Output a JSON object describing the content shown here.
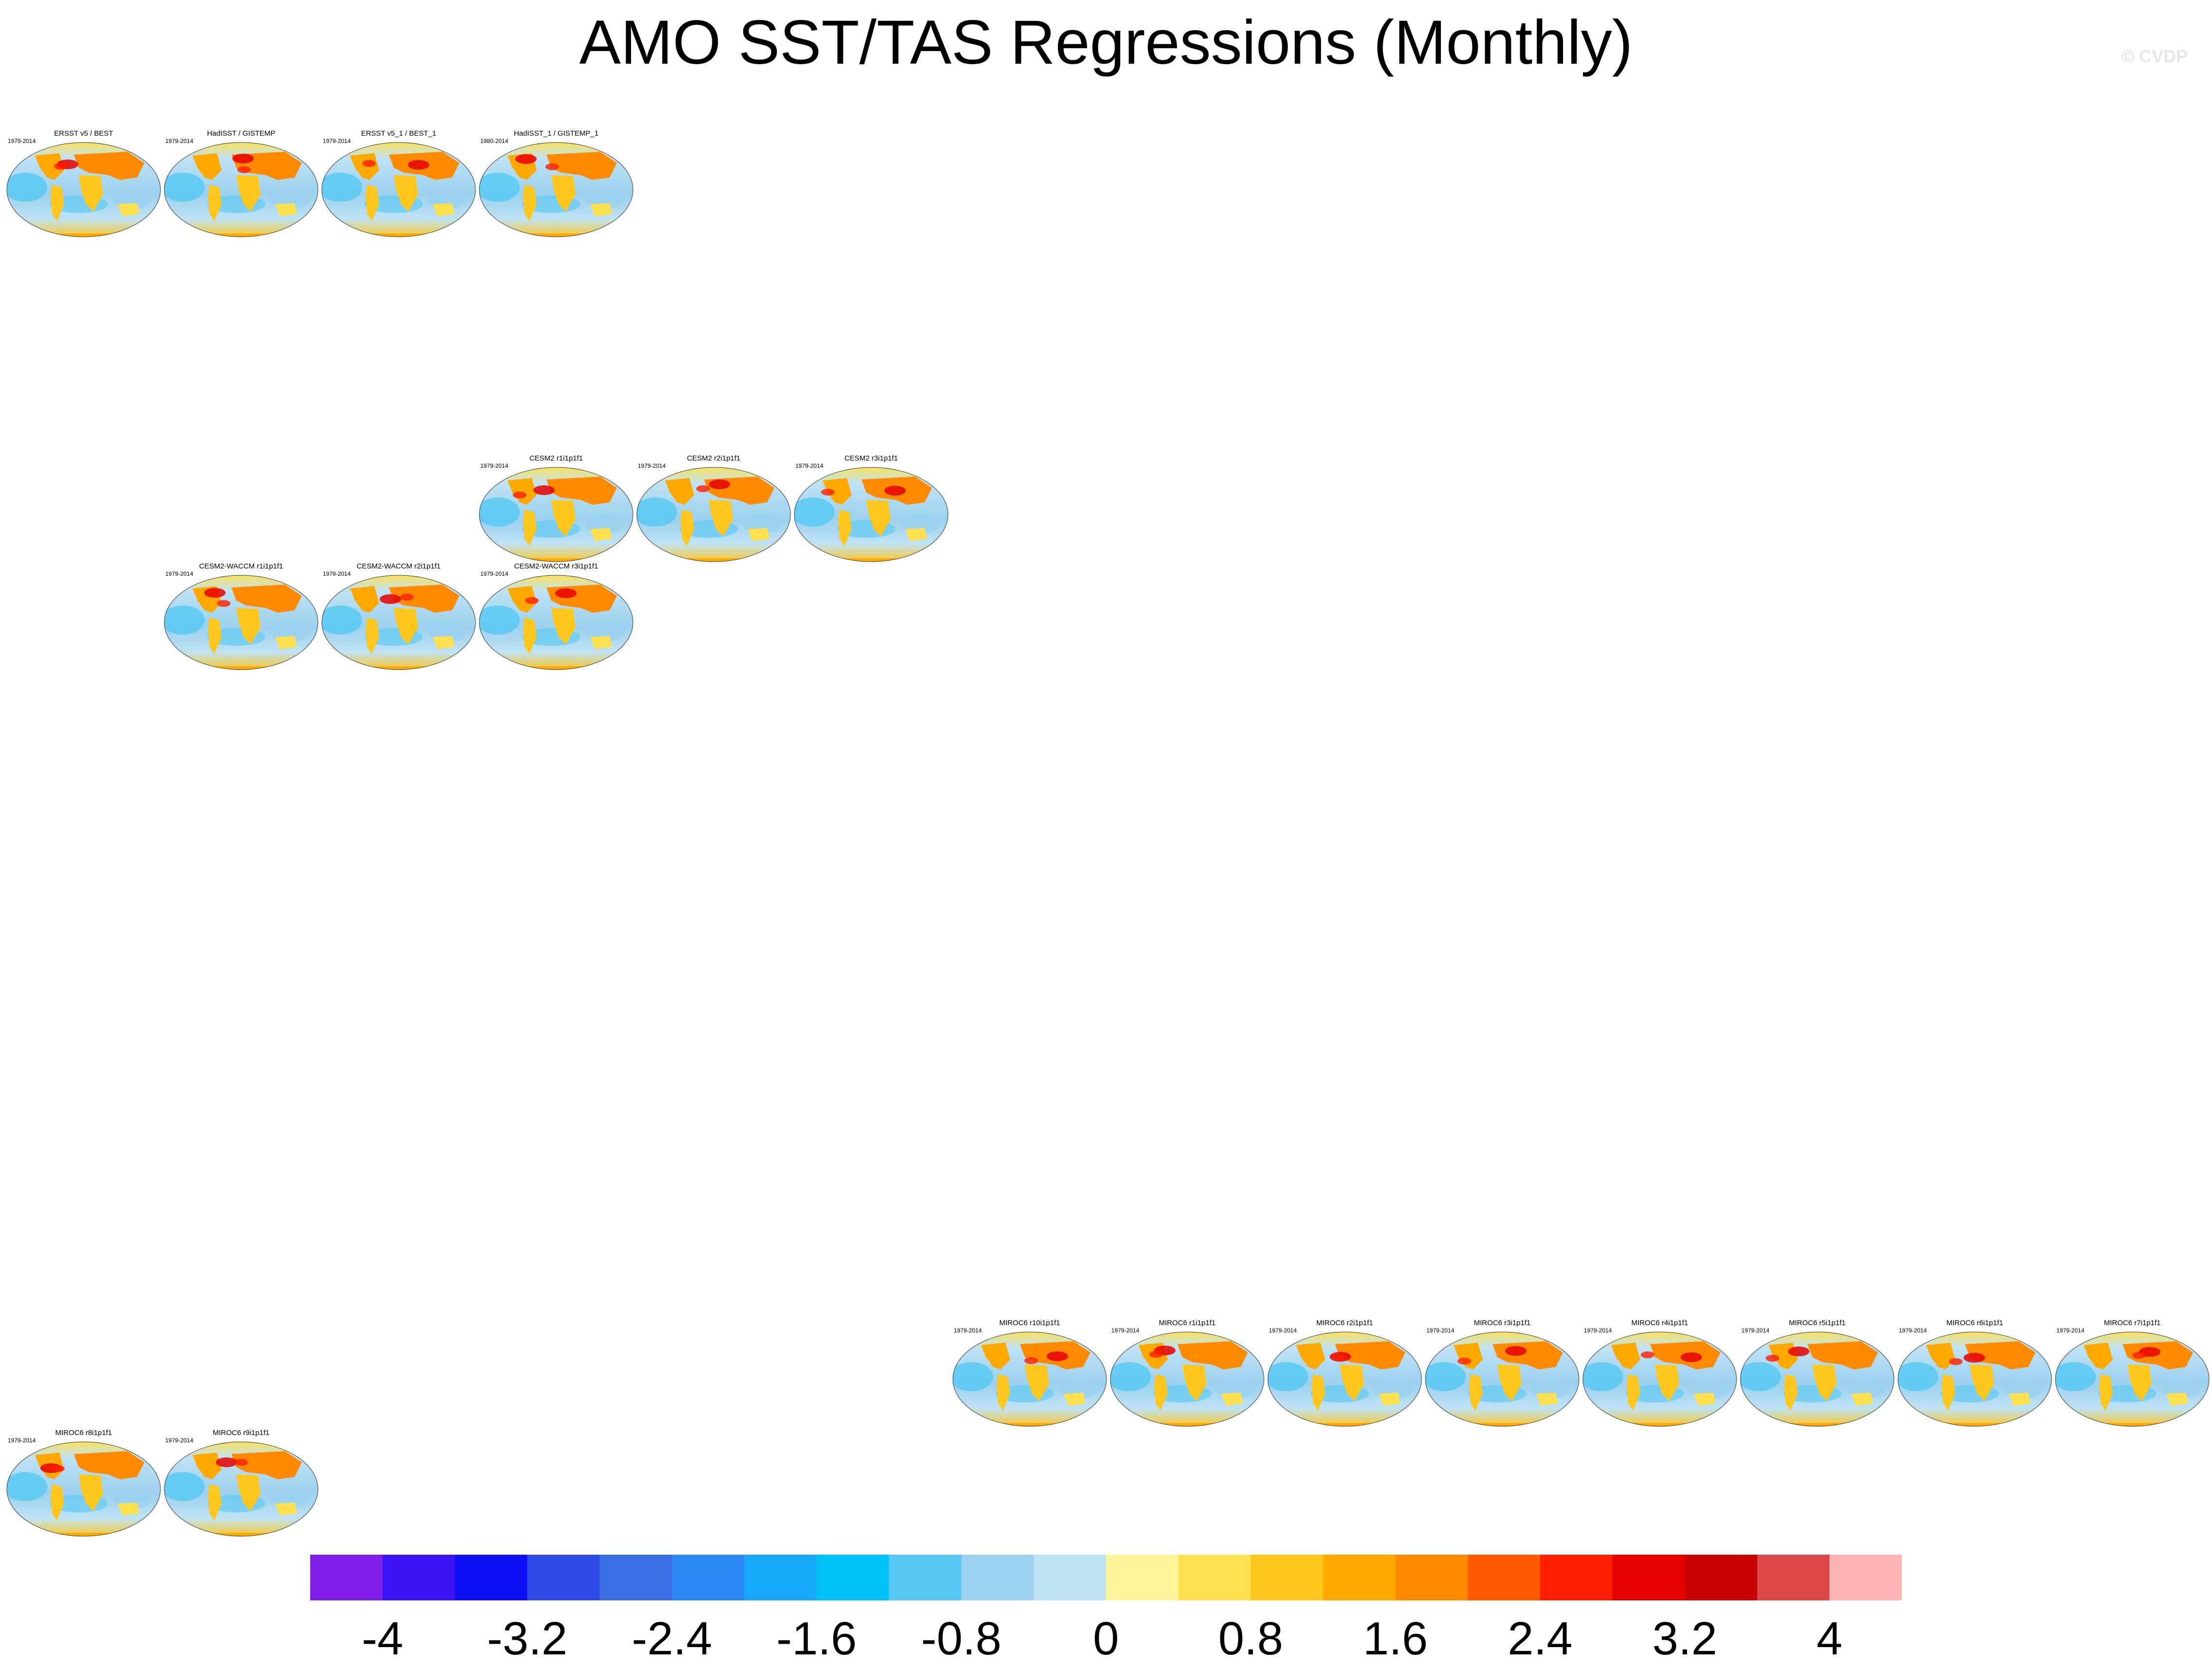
{
  "title": "AMO SST/TAS Regressions (Monthly)",
  "watermark": "© CVDP",
  "panels": [
    {
      "title": "ERSST v5 / BEST",
      "period": "1979-2014"
    },
    {
      "title": "HadISST / GISTEMP",
      "period": "1979-2014"
    },
    {
      "title": "ERSST v5_1 / BEST_1",
      "period": "1979-2014"
    },
    {
      "title": "HadISST_1 / GISTEMP_1",
      "period": "1980-2014"
    },
    {
      "title": "CESM2 r1i1p1f1",
      "period": "1979-2014"
    },
    {
      "title": "CESM2 r2i1p1f1",
      "period": "1979-2014"
    },
    {
      "title": "CESM2 r3i1p1f1",
      "period": "1979-2014"
    },
    {
      "title": "CESM2-WACCM r1i1p1f1",
      "period": "1979-2014"
    },
    {
      "title": "CESM2-WACCM r2i1p1f1",
      "period": "1979-2014"
    },
    {
      "title": "CESM2-WACCM r3i1p1f1",
      "period": "1979-2014"
    },
    {
      "title": "MIROC6 r10i1p1f1",
      "period": "1979-2014"
    },
    {
      "title": "MIROC6 r1i1p1f1",
      "period": "1979-2014"
    },
    {
      "title": "MIROC6 r2i1p1f1",
      "period": "1979-2014"
    },
    {
      "title": "MIROC6 r3i1p1f1",
      "period": "1979-2014"
    },
    {
      "title": "MIROC6 r4i1p1f1",
      "period": "1979-2014"
    },
    {
      "title": "MIROC6 r5i1p1f1",
      "period": "1979-2014"
    },
    {
      "title": "MIROC6 r6i1p1f1",
      "period": "1979-2014"
    },
    {
      "title": "MIROC6 r7i1p1f1",
      "period": "1979-2014"
    },
    {
      "title": "MIROC6 r8i1p1f1",
      "period": "1979-2014"
    },
    {
      "title": "MIROC6 r9i1p1f1",
      "period": "1979-2014"
    }
  ],
  "colorbar": {
    "colors": [
      "#7f1fe8",
      "#3c14f5",
      "#0f0ff5",
      "#2e4be6",
      "#3c6ee6",
      "#2a87f5",
      "#18a8fa",
      "#00c3fa",
      "#55c8f2",
      "#9bd1ee",
      "#bfe2f4",
      "#fff59a",
      "#ffe150",
      "#ffc71e",
      "#ffa800",
      "#ff8a00",
      "#ff5a00",
      "#ff1e00",
      "#e60000",
      "#c80000",
      "#dc4646",
      "#ffb4b4"
    ],
    "tick_labels": [
      "-4",
      "-3.2",
      "-2.4",
      "-1.6",
      "-0.8",
      "0",
      "0.8",
      "1.6",
      "2.4",
      "3.2",
      "4"
    ]
  }
}
